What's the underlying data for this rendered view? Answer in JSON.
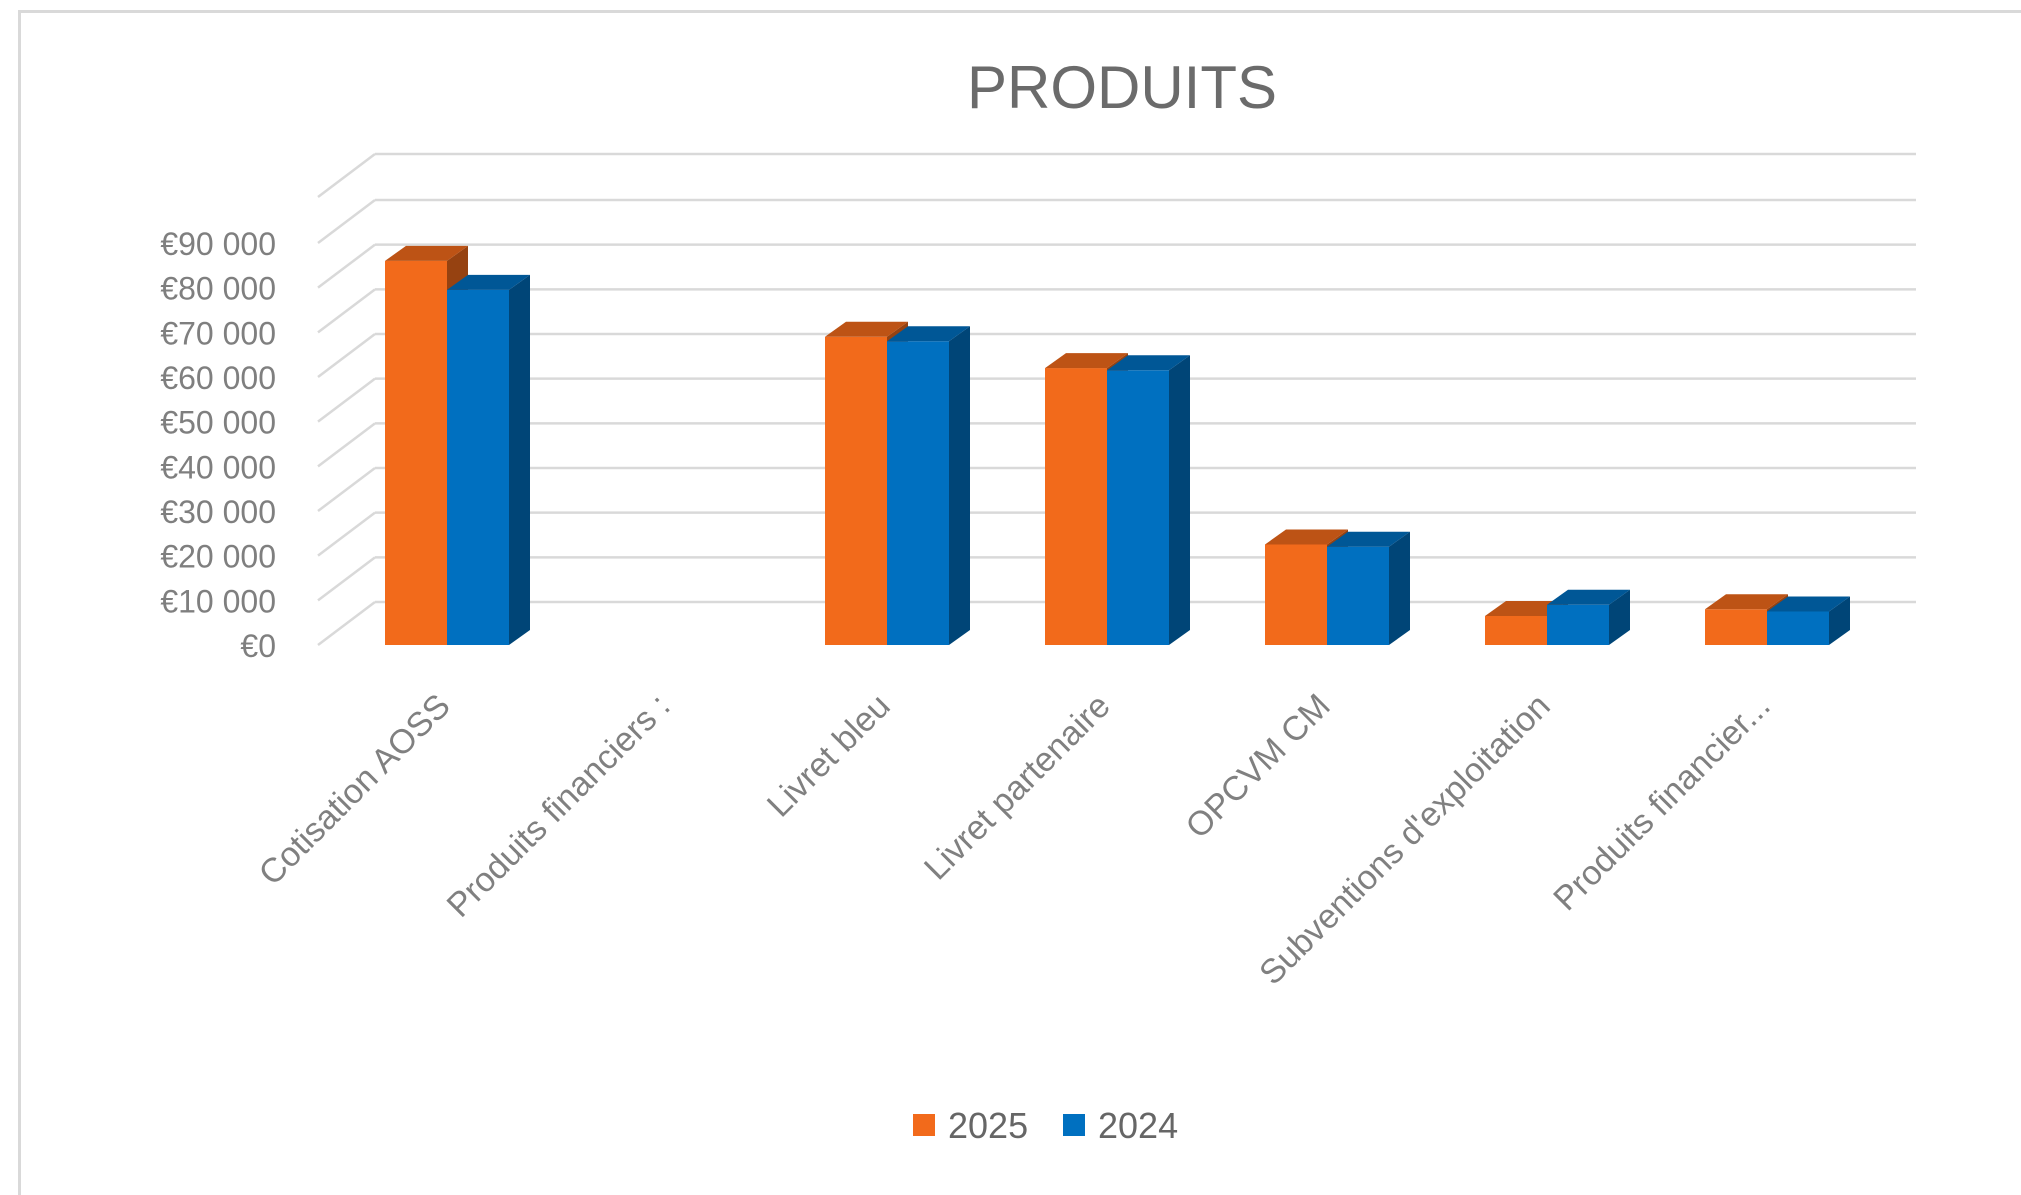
{
  "chart_data": {
    "type": "bar",
    "title": "PRODUITS",
    "xlabel": "",
    "ylabel": "",
    "categories": [
      "Cotisation AOSS",
      "Produits financiers :",
      "Livret bleu",
      "Livret partenaire",
      "OPCVM CM",
      "Subventions d'exploitation",
      "Produits financier..."
    ],
    "series": [
      {
        "name": "2025",
        "color": "#f26a1b",
        "values": [
          86000,
          0,
          69000,
          62000,
          22500,
          6500,
          8000
        ]
      },
      {
        "name": "2024",
        "color": "#0070c0",
        "values": [
          79500,
          0,
          68000,
          61500,
          22000,
          9000,
          7500
        ]
      }
    ],
    "ylim": [
      0,
      90000
    ],
    "yticks": [
      "€0",
      "€10 000",
      "€20 000",
      "€30 000",
      "€40 000",
      "€50 000",
      "€60 000",
      "€70 000",
      "€80 000",
      "€90 000"
    ],
    "grid": true,
    "legend_position": "bottom",
    "style": "3d-clustered-column"
  }
}
